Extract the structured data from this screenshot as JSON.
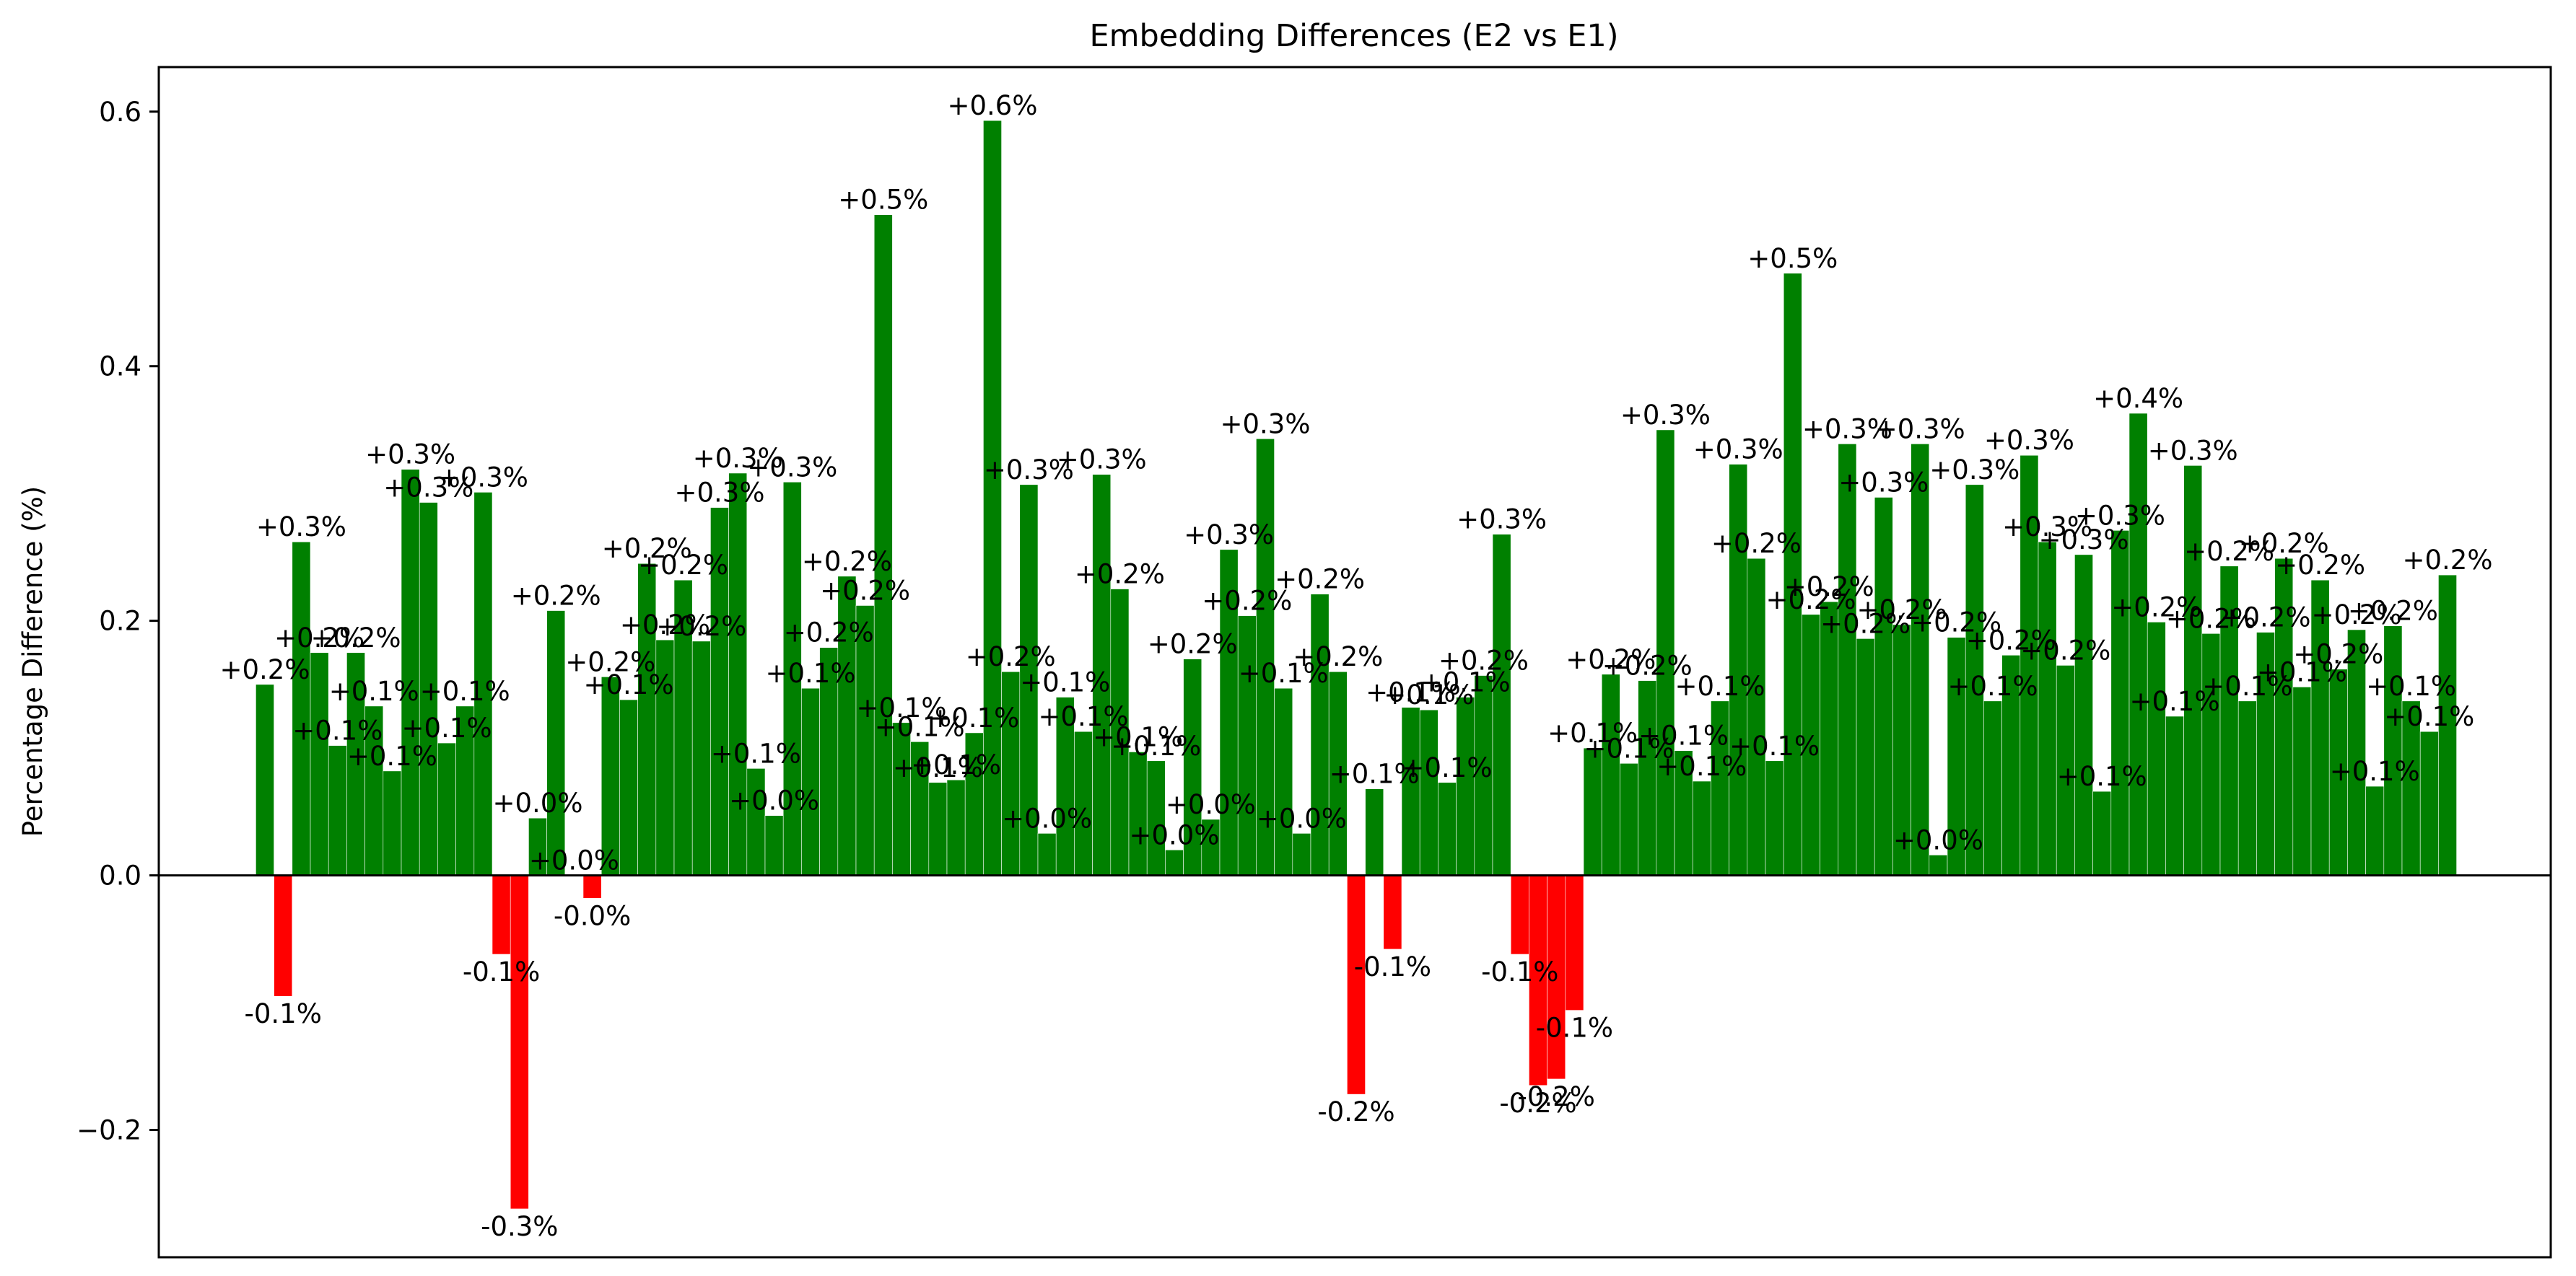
{
  "chart_data": {
    "type": "bar",
    "title": "Embedding Differences (E2 vs E1)",
    "xlabel": "",
    "ylabel": "Percentage Difference (%)",
    "ylim": [
      -0.3,
      0.635
    ],
    "yticks": [
      -0.2,
      0.0,
      0.2,
      0.4,
      0.6
    ],
    "ytick_labels": [
      "−0.2",
      "0.0",
      "0.2",
      "0.4",
      "0.6"
    ],
    "grid": false,
    "legend": "none",
    "colors": {
      "positive": "#008000",
      "negative": "#ff0000",
      "zero_line": "#000000"
    },
    "values": [
      0.15,
      -0.095,
      0.262,
      0.175,
      0.102,
      0.175,
      0.133,
      0.082,
      0.319,
      0.293,
      0.104,
      0.133,
      0.301,
      -0.062,
      -0.262,
      0.045,
      0.208,
      0.0,
      -0.018,
      0.156,
      0.138,
      0.245,
      0.185,
      0.232,
      0.184,
      0.289,
      0.316,
      0.084,
      0.047,
      0.309,
      0.147,
      0.179,
      0.235,
      0.212,
      0.519,
      0.12,
      0.105,
      0.073,
      0.075,
      0.112,
      0.593,
      0.16,
      0.307,
      0.033,
      0.14,
      0.113,
      0.315,
      0.225,
      0.097,
      0.09,
      0.02,
      0.17,
      0.044,
      0.256,
      0.204,
      0.343,
      0.147,
      0.033,
      0.221,
      0.16,
      -0.172,
      0.068,
      -0.058,
      0.132,
      0.13,
      0.073,
      0.14,
      0.157,
      0.268,
      -0.062,
      -0.165,
      -0.16,
      -0.106,
      0.1,
      0.158,
      0.088,
      0.153,
      0.35,
      0.098,
      0.074,
      0.137,
      0.323,
      0.249,
      0.09,
      0.473,
      0.205,
      0.215,
      0.339,
      0.186,
      0.297,
      0.197,
      0.339,
      0.016,
      0.187,
      0.307,
      0.137,
      0.173,
      0.33,
      0.262,
      0.165,
      0.252,
      0.066,
      0.271,
      0.363,
      0.199,
      0.125,
      0.322,
      0.19,
      0.243,
      0.137,
      0.191,
      0.249,
      0.148,
      0.232,
      0.162,
      0.193,
      0.07,
      0.196,
      0.137,
      0.113,
      0.236
    ],
    "labels": [
      "+0.2%",
      "-0.1%",
      "+0.3%",
      "+0.2%",
      "+0.1%",
      "+0.2%",
      "+0.1%",
      "+0.1%",
      "+0.3%",
      "+0.3%",
      "+0.1%",
      "+0.1%",
      "+0.3%",
      "-0.1%",
      "-0.3%",
      "+0.0%",
      "+0.2%",
      "+0.0%",
      "-0.0%",
      "+0.2%",
      "+0.1%",
      "+0.2%",
      "+0.2%",
      "+0.2%",
      "+0.2%",
      "+0.3%",
      "+0.3%",
      "+0.1%",
      "+0.0%",
      "+0.3%",
      "+0.1%",
      "+0.2%",
      "+0.2%",
      "+0.2%",
      "+0.5%",
      "+0.1%",
      "+0.1%",
      "+0.1%",
      "+0.1%",
      "+0.1%",
      "+0.6%",
      "+0.2%",
      "+0.3%",
      "+0.0%",
      "+0.1%",
      "+0.1%",
      "+0.3%",
      "+0.2%",
      "+0.1%",
      "+0.1%",
      "+0.0%",
      "+0.2%",
      "+0.0%",
      "+0.3%",
      "+0.2%",
      "+0.3%",
      "+0.1%",
      "+0.0%",
      "+0.2%",
      "+0.2%",
      "-0.2%",
      "+0.1%",
      "-0.1%",
      "+0.1%",
      "+0.1%",
      "+0.1%",
      "+0.1%",
      "+0.2%",
      "+0.3%",
      "-0.1%",
      "-0.2%",
      "-0.2%",
      "-0.1%",
      "+0.1%",
      "+0.2%",
      "+0.1%",
      "+0.2%",
      "+0.3%",
      "+0.1%",
      "+0.1%",
      "+0.1%",
      "+0.3%",
      "+0.2%",
      "+0.1%",
      "+0.5%",
      "+0.2%",
      "+0.2%",
      "+0.3%",
      "+0.2%",
      "+0.3%",
      "+0.2%",
      "+0.3%",
      "+0.0%",
      "+0.2%",
      "+0.3%",
      "+0.1%",
      "+0.2%",
      "+0.3%",
      "+0.3%",
      "+0.2%",
      "+0.3%",
      "+0.1%",
      "+0.3%",
      "+0.4%",
      "+0.2%",
      "+0.1%",
      "+0.3%",
      "+0.2%",
      "+0.2%",
      "+0.1%",
      "+0.2%",
      "+0.2%",
      "+0.1%",
      "+0.2%",
      "+0.2%",
      "+0.2%",
      "+0.1%",
      "+0.2%",
      "+0.1%",
      "+0.1%",
      "+0.2%"
    ]
  }
}
